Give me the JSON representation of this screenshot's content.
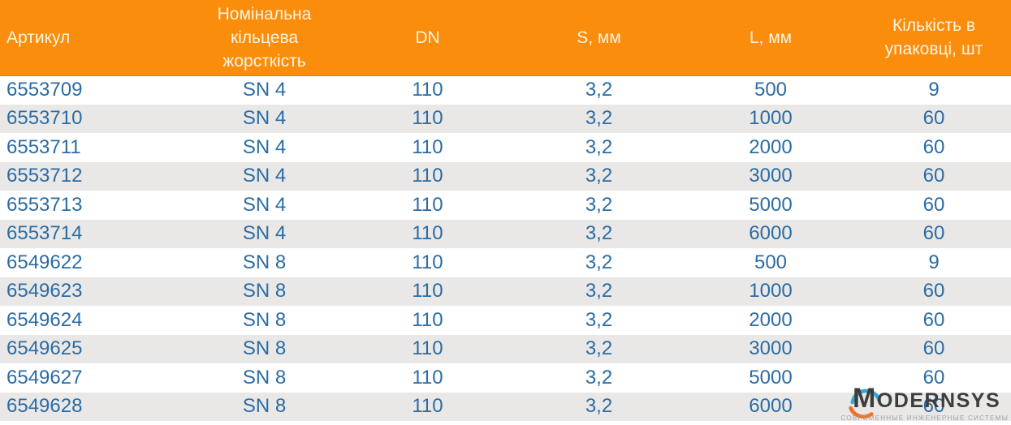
{
  "table": {
    "columns": [
      {
        "key": "article",
        "label": "Артикул"
      },
      {
        "key": "sn",
        "label": "Номінальна кільцева жорсткість"
      },
      {
        "key": "dn",
        "label": "DN"
      },
      {
        "key": "s",
        "label": "S, мм"
      },
      {
        "key": "l",
        "label": "L, мм"
      },
      {
        "key": "qty",
        "label": "Кількість в упаковці, шт"
      }
    ],
    "rows": [
      [
        "6553709",
        "SN 4",
        "110",
        "3,2",
        "500",
        "9"
      ],
      [
        "6553710",
        "SN 4",
        "110",
        "3,2",
        "1000",
        "60"
      ],
      [
        "6553711",
        "SN 4",
        "110",
        "3,2",
        "2000",
        "60"
      ],
      [
        "6553712",
        "SN 4",
        "110",
        "3,2",
        "3000",
        "60"
      ],
      [
        "6553713",
        "SN 4",
        "110",
        "3,2",
        "5000",
        "60"
      ],
      [
        "6553714",
        "SN 4",
        "110",
        "3,2",
        "6000",
        "60"
      ],
      [
        "6549622",
        "SN 8",
        "110",
        "3,2",
        "500",
        "9"
      ],
      [
        "6549623",
        "SN 8",
        "110",
        "3,2",
        "1000",
        "60"
      ],
      [
        "6549624",
        "SN 8",
        "110",
        "3,2",
        "2000",
        "60"
      ],
      [
        "6549625",
        "SN 8",
        "110",
        "3,2",
        "3000",
        "60"
      ],
      [
        "6549627",
        "SN 8",
        "110",
        "3,2",
        "5000",
        "60"
      ],
      [
        "6549628",
        "SN 8",
        "110",
        "3,2",
        "6000",
        "60"
      ]
    ]
  },
  "logo": {
    "brand": "MODERNSYS",
    "tagline": "СОВРЕМЕННЫЕ ИНЖЕНЕРНЫЕ СИСТЕМЫ"
  },
  "colors": {
    "header_bg": "#FA8D0B",
    "header_text": "#FCF4E3",
    "cell_text": "#2B6CA4",
    "row_alt_bg": "#E9E8E7",
    "logo_text": "#3D3D3C",
    "logo_blue": "#2FA8DC",
    "logo_orange": "#F26F21",
    "tagline_text": "#A3A2A1"
  }
}
